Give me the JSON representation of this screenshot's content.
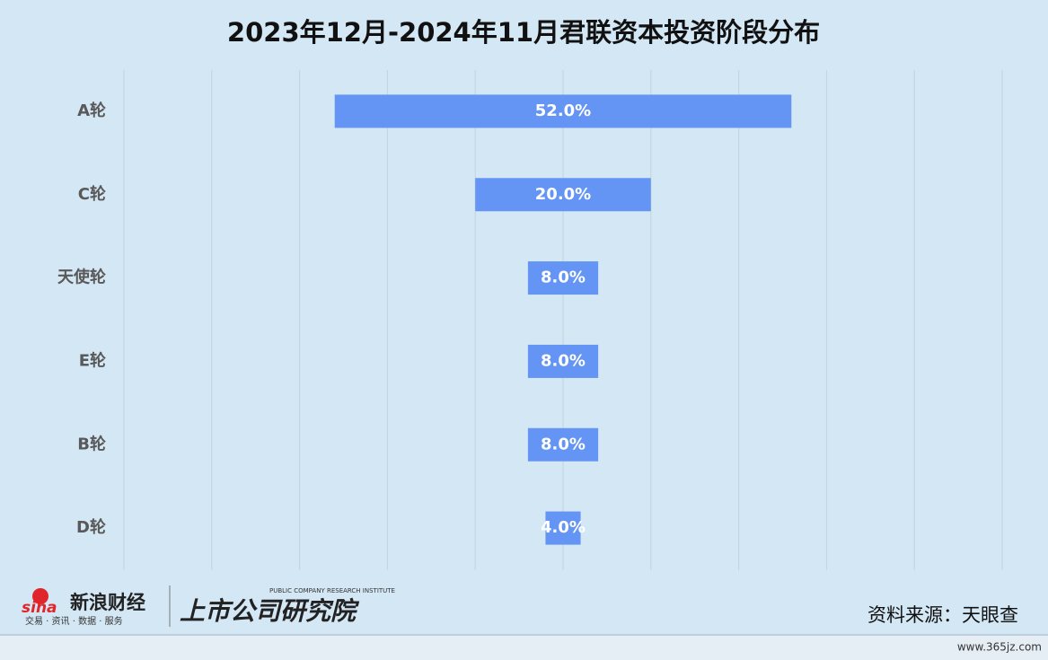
{
  "chart_data": {
    "type": "funnel",
    "title": "2023年12月-2024年11月君联资本投资阶段分布",
    "categories": [
      "A轮",
      "C轮",
      "天使轮",
      "E轮",
      "B轮",
      "D轮"
    ],
    "values": [
      52.0,
      20.0,
      8.0,
      8.0,
      8.0,
      4.0
    ],
    "value_labels": [
      "52.0%",
      "20.0%",
      "8.0%",
      "8.0%",
      "8.0%",
      "4.0%"
    ],
    "color": "#6495f5",
    "xlim": [
      0,
      100
    ],
    "grid": true
  },
  "footer": {
    "brand": "新浪财经",
    "brand_tagline": "交易 · 资讯 · 数据 · 服务",
    "institute": "上市公司研究院",
    "institute_en": "PUBLIC COMPANY RESEARCH INSTITUTE",
    "source": "资料来源：天眼查",
    "watermark": "www.365jz.com"
  }
}
